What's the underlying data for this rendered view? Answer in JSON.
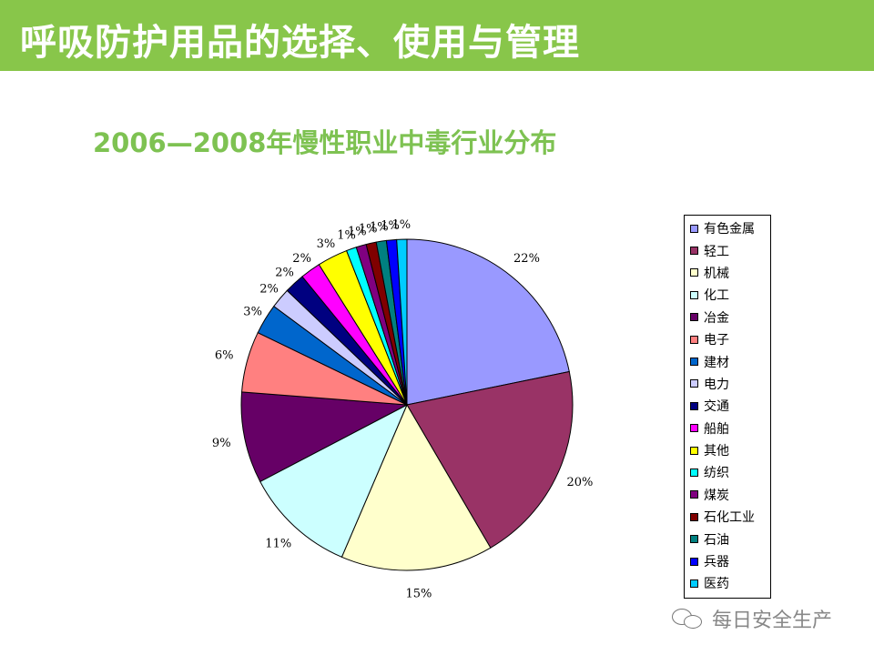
{
  "header": {
    "title": "呼吸防护用品的选择、使用与管理"
  },
  "colors": {
    "header_bg": "#88c64a",
    "title_green": "#7ec252"
  },
  "watermark": {
    "icon": "wechat-icon",
    "text": "每日安全生产"
  },
  "chart_data": {
    "type": "pie",
    "title": "2006—2008年慢性职业中毒行业分布",
    "legend_position": "right",
    "start": "12 o'clock, clockwise",
    "slices": [
      {
        "label": "有色金属",
        "value": 22,
        "display": "22%",
        "color": "#9999ff"
      },
      {
        "label": "轻工",
        "value": 20,
        "display": "20%",
        "color": "#993366"
      },
      {
        "label": "机械",
        "value": 15,
        "display": "15%",
        "color": "#ffffcc"
      },
      {
        "label": "化工",
        "value": 11,
        "display": "11%",
        "color": "#ccffff"
      },
      {
        "label": "冶金",
        "value": 9,
        "display": "9%",
        "color": "#660066"
      },
      {
        "label": "电子",
        "value": 6,
        "display": "6%",
        "color": "#ff8080"
      },
      {
        "label": "建材",
        "value": 3,
        "display": "3%",
        "color": "#0066cc"
      },
      {
        "label": "电力",
        "value": 2,
        "display": "2%",
        "color": "#ccccff"
      },
      {
        "label": "交通",
        "value": 2,
        "display": "2%",
        "color": "#000080"
      },
      {
        "label": "船舶",
        "value": 2,
        "display": "2%",
        "color": "#ff00ff"
      },
      {
        "label": "其他",
        "value": 3,
        "display": "3%",
        "color": "#ffff00"
      },
      {
        "label": "纺织",
        "value": 1,
        "display": "1%",
        "color": "#00ffff"
      },
      {
        "label": "煤炭",
        "value": 1,
        "display": "1%",
        "color": "#800080"
      },
      {
        "label": "石化工业",
        "value": 1,
        "display": "1%",
        "color": "#800000"
      },
      {
        "label": "石油",
        "value": 1,
        "display": "1%",
        "color": "#008080"
      },
      {
        "label": "兵器",
        "value": 1,
        "display": "1%",
        "color": "#0000ff"
      },
      {
        "label": "医药",
        "value": 1,
        "display": "1%",
        "color": "#00ccff"
      }
    ]
  }
}
